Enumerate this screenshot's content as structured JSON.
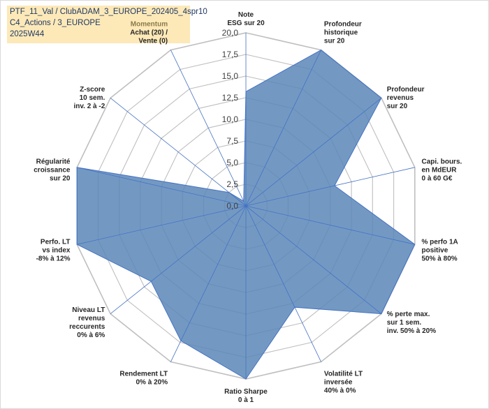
{
  "info": {
    "line1": "PTF_11_Val / ClubADAM_3_EUROPE_202405_4spr10",
    "line2": "C4_Actions / 3_EUROPE",
    "line3": "2025W44"
  },
  "chart_data": {
    "type": "radar",
    "title": "",
    "rlim": [
      0,
      20
    ],
    "ticks": [
      "0,0",
      "2,5",
      "5,0",
      "7,5",
      "10,0",
      "12,5",
      "15,0",
      "17,5",
      "20,0"
    ],
    "grid": true,
    "colors": {
      "fill": "#5b87b8",
      "edge": "#4472c4",
      "grid": "#bfbfbf",
      "axis": "#4472c4"
    },
    "axes": [
      {
        "label": [
          "Note",
          "ESG sur 20"
        ],
        "value": 13.2
      },
      {
        "label": [
          "Profondeur",
          "historique",
          "sur 20"
        ],
        "value": 20.0
      },
      {
        "label": [
          "Profondeur",
          "revenus",
          "sur 20"
        ],
        "value": 20.0
      },
      {
        "label": [
          "Capi. bours.",
          "en MdEUR",
          "0 à 60 G€"
        ],
        "value": 10.5
      },
      {
        "label": [
          "% perfo 1A",
          "positive",
          "50% à 80%"
        ],
        "value": 20.0
      },
      {
        "label": [
          "% perte max.",
          "sur 1 sem.",
          "inv. 50% à 20%"
        ],
        "value": 20.0
      },
      {
        "label": [
          "Volatilité LT",
          "inversée",
          "40% à 0%"
        ],
        "value": 13.0
      },
      {
        "label": [
          "Ratio Sharpe",
          "0 à 1"
        ],
        "value": 20.0
      },
      {
        "label": [
          "Rendement LT",
          "0% à 20%"
        ],
        "value": 17.3
      },
      {
        "label": [
          "Niveau LT",
          "revenus",
          "reccurents",
          "0% à 6%"
        ],
        "value": 14.0
      },
      {
        "label": [
          "Perfo. LT",
          "vs index",
          "-8% à 12%"
        ],
        "value": 20.0
      },
      {
        "label": [
          "Régularité",
          "croissance",
          "sur 20"
        ],
        "value": 20.0
      },
      {
        "label": [
          "Z-score",
          "10 sem.",
          "inv. 2 à -2"
        ],
        "value": 2.5
      },
      {
        "label": [
          "Momentum",
          "Achat (20) /",
          "Vente (0)"
        ],
        "value": 0.6
      }
    ]
  }
}
